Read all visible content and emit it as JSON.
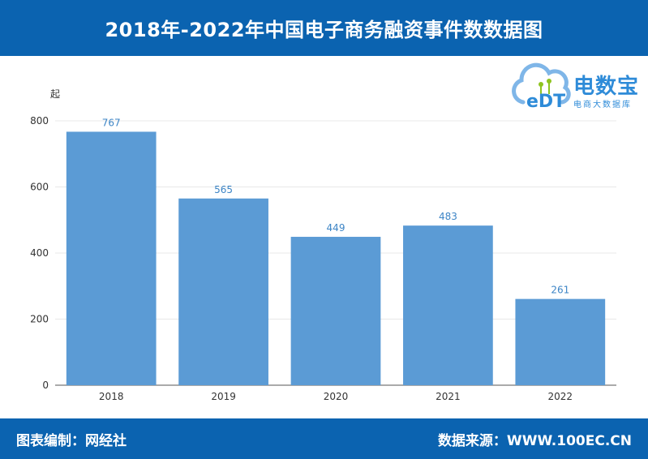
{
  "header": {
    "title": "2018年-2022年中国电子商务融资事件数数据图"
  },
  "logo": {
    "name": "电数宝",
    "subtitle": "电商大数据库",
    "badge": "eDT"
  },
  "footer": {
    "left": "图表编制：网经社",
    "right": "数据来源：WWW.100EC.CN"
  },
  "chart_data": {
    "type": "bar",
    "title": "2018年-2022年中国电子商务融资事件数数据图",
    "unit": "起",
    "categories": [
      "2018",
      "2019",
      "2020",
      "2021",
      "2022"
    ],
    "values": [
      767,
      565,
      449,
      483,
      261
    ],
    "ylim": [
      0,
      800
    ],
    "yticks": [
      0,
      200,
      400,
      600,
      800
    ],
    "grid": true,
    "bar_color": "#5b9bd5",
    "label_color": "#3d85c6"
  }
}
